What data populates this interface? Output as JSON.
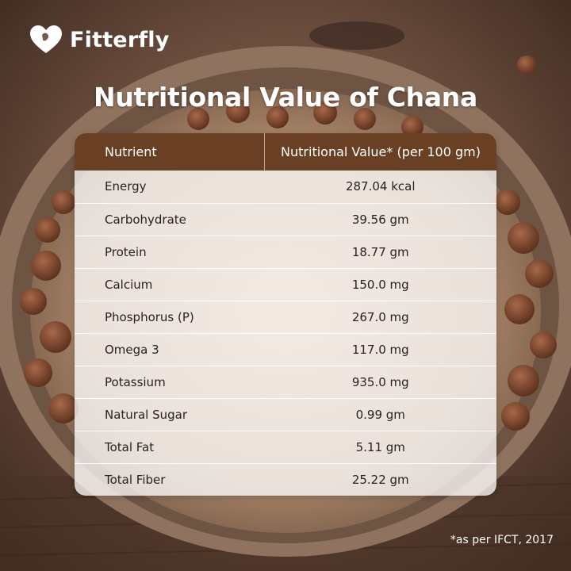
{
  "brand": {
    "name": "Fitterfly"
  },
  "title": "Nutritional Value of Chana",
  "table": {
    "headers": [
      "Nutrient",
      "Nutritional Value* (per 100 gm)"
    ],
    "rows": [
      {
        "nutrient": "Energy",
        "value": "287.04 kcal"
      },
      {
        "nutrient": "Carbohydrate",
        "value": "39.56 gm"
      },
      {
        "nutrient": "Protein",
        "value": "18.77 gm"
      },
      {
        "nutrient": "Calcium",
        "value": "150.0 mg"
      },
      {
        "nutrient": "Phosphorus (P)",
        "value": "267.0 mg"
      },
      {
        "nutrient": "Omega 3",
        "value": "117.0 mg"
      },
      {
        "nutrient": "Potassium",
        "value": "935.0 mg"
      },
      {
        "nutrient": "Natural Sugar",
        "value": "0.99 gm"
      },
      {
        "nutrient": "Total Fat",
        "value": "5.11 gm"
      },
      {
        "nutrient": "Total Fiber",
        "value": "25.22 gm"
      }
    ]
  },
  "footnote": "*as per IFCT, 2017",
  "colors": {
    "header_brown": "#6a4025",
    "text_dark": "#2a211c",
    "background_brown": "#5a4134"
  },
  "icons": {
    "logo": "heart-logo-icon"
  }
}
